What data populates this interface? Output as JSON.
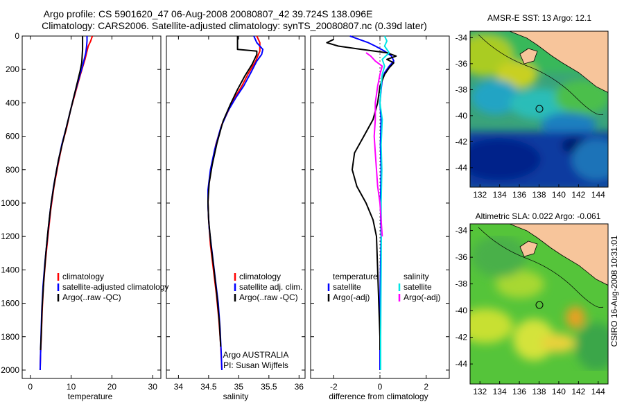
{
  "header": {
    "title_line1": "Argo profile: CS 5901620_47 06-Aug-2008 20080807_42 39.724S 138.096E",
    "title_line2": "Climatology: CARS2006. Satellite-adjusted climatology: synTS_20080807.nc (0.39d later)"
  },
  "side_label": "CSIRO 16-Aug-2008 10:31:01",
  "colors": {
    "climatology": "#ff0000",
    "satellite": "#0000ff",
    "argo": "#000000",
    "salinity_satellite": "#00e5e5",
    "salinity_argo": "#ff00ff",
    "land": "#f7c59b"
  },
  "chart_data": [
    {
      "type": "line",
      "xlabel": "temperature",
      "xticks": [
        "0",
        "10",
        "20",
        "30"
      ],
      "xlim": [
        -2,
        32
      ],
      "ylim": [
        2050,
        0
      ],
      "yticks": [
        "0",
        "200",
        "400",
        "600",
        "800",
        "1000",
        "1200",
        "1400",
        "1600",
        "1800",
        "2000"
      ],
      "legend": {
        "position": "lower-right",
        "entries": [
          "climatology",
          "satellite-adjusted climatology",
          "Argo(..raw -QC)"
        ]
      },
      "series": [
        {
          "name": "climatology",
          "color_key": "climatology",
          "points": [
            [
              15.2,
              0
            ],
            [
              14.8,
              30
            ],
            [
              14.2,
              60
            ],
            [
              13.8,
              100
            ],
            [
              13.4,
              140
            ],
            [
              12.9,
              180
            ],
            [
              12.3,
              230
            ],
            [
              11.6,
              290
            ],
            [
              10.8,
              360
            ],
            [
              9.8,
              450
            ],
            [
              8.9,
              550
            ],
            [
              7.8,
              650
            ],
            [
              6.7,
              780
            ],
            [
              5.8,
              900
            ],
            [
              5.0,
              1040
            ],
            [
              4.3,
              1200
            ],
            [
              3.7,
              1350
            ],
            [
              3.2,
              1500
            ],
            [
              2.9,
              1650
            ],
            [
              2.7,
              1800
            ],
            [
              2.5,
              1900
            ],
            [
              2.4,
              2000
            ]
          ]
        },
        {
          "name": "satellite-adjusted climatology",
          "color_key": "satellite",
          "points": [
            [
              13.9,
              0
            ],
            [
              13.9,
              30
            ],
            [
              13.8,
              60
            ],
            [
              13.6,
              100
            ],
            [
              13.2,
              140
            ],
            [
              12.8,
              180
            ],
            [
              12.2,
              230
            ],
            [
              11.5,
              290
            ],
            [
              10.7,
              360
            ],
            [
              9.8,
              450
            ],
            [
              8.8,
              550
            ],
            [
              7.7,
              650
            ],
            [
              6.6,
              780
            ],
            [
              5.7,
              900
            ],
            [
              4.9,
              1040
            ],
            [
              4.2,
              1200
            ],
            [
              3.6,
              1350
            ],
            [
              3.1,
              1500
            ],
            [
              2.8,
              1650
            ],
            [
              2.6,
              1800
            ],
            [
              2.5,
              1900
            ],
            [
              2.4,
              2000
            ]
          ]
        },
        {
          "name": "Argo(..raw -QC)",
          "color_key": "argo",
          "points": [
            [
              12.8,
              0
            ],
            [
              12.8,
              40
            ],
            [
              12.8,
              80
            ],
            [
              12.7,
              120
            ],
            [
              12.6,
              160
            ],
            [
              12.2,
              210
            ],
            [
              11.6,
              270
            ],
            [
              10.9,
              340
            ],
            [
              10.0,
              430
            ],
            [
              9.0,
              530
            ],
            [
              8.0,
              630
            ],
            [
              6.9,
              740
            ],
            [
              6.0,
              860
            ],
            [
              5.1,
              1000
            ],
            [
              4.4,
              1150
            ],
            [
              3.8,
              1300
            ],
            [
              3.3,
              1460
            ],
            [
              2.9,
              1620
            ],
            [
              2.7,
              1780
            ],
            [
              2.5,
              1880
            ]
          ]
        }
      ]
    },
    {
      "type": "line",
      "xlabel": "salinity",
      "xticks": [
        "34",
        "34.5",
        "35",
        "35.5",
        "36"
      ],
      "xlim": [
        33.8,
        36.1
      ],
      "ylim": [
        2050,
        0
      ],
      "legend": {
        "position": "lower-right",
        "entries": [
          "climatology",
          "satellite adj. clim.",
          "Argo(..raw -QC)"
        ]
      },
      "annotation": [
        "Argo AUSTRALIA",
        "PI: Susan Wijffels"
      ],
      "series": [
        {
          "name": "climatology",
          "color_key": "climatology",
          "points": [
            [
              35.3,
              0
            ],
            [
              35.35,
              40
            ],
            [
              35.35,
              90
            ],
            [
              35.28,
              150
            ],
            [
              35.15,
              230
            ],
            [
              35.05,
              300
            ],
            [
              34.95,
              360
            ],
            [
              34.85,
              430
            ],
            [
              34.72,
              530
            ],
            [
              34.62,
              650
            ],
            [
              34.55,
              780
            ],
            [
              34.5,
              900
            ],
            [
              34.49,
              1000
            ],
            [
              34.5,
              1100
            ],
            [
              34.53,
              1250
            ],
            [
              34.58,
              1400
            ],
            [
              34.63,
              1550
            ],
            [
              34.67,
              1700
            ],
            [
              34.7,
              1850
            ],
            [
              34.72,
              2000
            ]
          ]
        },
        {
          "name": "satellite adj. clim.",
          "color_key": "satellite",
          "points": [
            [
              35.25,
              0
            ],
            [
              35.3,
              40
            ],
            [
              35.4,
              80
            ],
            [
              35.38,
              110
            ],
            [
              35.3,
              150
            ],
            [
              35.2,
              220
            ],
            [
              35.08,
              300
            ],
            [
              34.95,
              370
            ],
            [
              34.82,
              450
            ],
            [
              34.7,
              550
            ],
            [
              34.6,
              680
            ],
            [
              34.53,
              800
            ],
            [
              34.49,
              920
            ],
            [
              34.49,
              1020
            ],
            [
              34.51,
              1150
            ],
            [
              34.56,
              1300
            ],
            [
              34.61,
              1450
            ],
            [
              34.66,
              1600
            ],
            [
              34.69,
              1750
            ],
            [
              34.71,
              1900
            ],
            [
              34.72,
              2000
            ]
          ]
        },
        {
          "name": "Argo(..raw -QC)",
          "color_key": "argo",
          "points": [
            [
              34.98,
              0
            ],
            [
              34.98,
              40
            ],
            [
              34.98,
              80
            ],
            [
              35.3,
              90
            ],
            [
              35.3,
              110
            ],
            [
              35.22,
              170
            ],
            [
              35.1,
              240
            ],
            [
              34.98,
              320
            ],
            [
              34.86,
              410
            ],
            [
              34.74,
              510
            ],
            [
              34.64,
              640
            ],
            [
              34.56,
              770
            ],
            [
              34.51,
              880
            ],
            [
              34.49,
              990
            ],
            [
              34.5,
              1100
            ],
            [
              34.54,
              1250
            ],
            [
              34.59,
              1400
            ],
            [
              34.64,
              1560
            ],
            [
              34.68,
              1720
            ],
            [
              34.7,
              1860
            ]
          ]
        }
      ]
    },
    {
      "type": "line",
      "xlabel": "difference from climatology",
      "xticks": [
        "-2",
        "0",
        "2"
      ],
      "xlim": [
        -3,
        3
      ],
      "ylim": [
        2050,
        0
      ],
      "legend": {
        "position": "lower-left",
        "entries": [
          "temperature",
          "satellite",
          "Argo(-adj)"
        ]
      },
      "legend2": {
        "position": "lower-right",
        "entries": [
          "salinity",
          "satellite",
          "Argo(-adj)"
        ]
      },
      "series": [
        {
          "name": "temperature satellite",
          "color_key": "satellite",
          "points": [
            [
              -1.3,
              0
            ],
            [
              -0.9,
              20
            ],
            [
              -0.5,
              40
            ],
            [
              -0.2,
              60
            ],
            [
              0.2,
              90
            ],
            [
              0.5,
              120
            ],
            [
              0.6,
              150
            ],
            [
              0.4,
              180
            ],
            [
              0.2,
              220
            ],
            [
              0.1,
              260
            ],
            [
              0.05,
              320
            ],
            [
              0.0,
              400
            ],
            [
              0.05,
              500
            ],
            [
              0.02,
              650
            ],
            [
              0.05,
              800
            ],
            [
              0.02,
              1000
            ],
            [
              0.05,
              1200
            ],
            [
              0.02,
              1400
            ],
            [
              0.0,
              1600
            ],
            [
              0.0,
              1800
            ],
            [
              0.0,
              2000
            ]
          ]
        },
        {
          "name": "temperature Argo(-adj)",
          "color_key": "argo",
          "points": [
            [
              -2.0,
              20
            ],
            [
              -2.3,
              40
            ],
            [
              -1.8,
              60
            ],
            [
              -0.8,
              80
            ],
            [
              0.3,
              100
            ],
            [
              0.7,
              120
            ],
            [
              0.3,
              140
            ],
            [
              0.6,
              160
            ],
            [
              0.4,
              190
            ],
            [
              0.2,
              230
            ],
            [
              0.0,
              300
            ],
            [
              -0.1,
              400
            ],
            [
              -0.3,
              500
            ],
            [
              -0.7,
              600
            ],
            [
              -1.1,
              700
            ],
            [
              -1.2,
              800
            ],
            [
              -1.0,
              900
            ],
            [
              -0.6,
              1000
            ],
            [
              -0.3,
              1100
            ],
            [
              -0.15,
              1200
            ],
            [
              -0.1,
              1400
            ],
            [
              -0.05,
              1600
            ],
            [
              0.0,
              1800
            ],
            [
              0.0,
              1880
            ]
          ]
        },
        {
          "name": "salinity satellite",
          "color_key": "salinity_satellite",
          "points": [
            [
              0.2,
              0
            ],
            [
              0.3,
              30
            ],
            [
              0.2,
              60
            ],
            [
              0.4,
              100
            ],
            [
              0.1,
              140
            ],
            [
              0.2,
              180
            ],
            [
              0.1,
              230
            ],
            [
              0.05,
              300
            ],
            [
              0.0,
              400
            ],
            [
              0.1,
              500
            ],
            [
              0.05,
              650
            ],
            [
              0.08,
              800
            ],
            [
              0.05,
              1000
            ],
            [
              0.06,
              1200
            ],
            [
              0.05,
              1400
            ],
            [
              0.04,
              1600
            ],
            [
              0.03,
              1800
            ],
            [
              0.03,
              2000
            ]
          ]
        },
        {
          "name": "salinity Argo(-adj)",
          "color_key": "salinity_argo",
          "points": [
            [
              -0.6,
              100
            ],
            [
              -0.4,
              120
            ],
            [
              -0.2,
              150
            ],
            [
              0.1,
              180
            ],
            [
              0.0,
              230
            ],
            [
              -0.1,
              300
            ],
            [
              -0.2,
              400
            ],
            [
              -0.2,
              500
            ],
            [
              -0.25,
              600
            ],
            [
              -0.2,
              700
            ],
            [
              -0.15,
              800
            ],
            [
              -0.1,
              900
            ],
            [
              0.0,
              1000
            ],
            [
              0.05,
              1100
            ],
            [
              0.1,
              1200
            ]
          ]
        }
      ]
    }
  ],
  "maps": [
    {
      "title": "AMSR-E SST: 13 Argo: 12.1",
      "xticks": [
        "132",
        "134",
        "136",
        "138",
        "140",
        "142",
        "144"
      ],
      "yticks": [
        "-34",
        "-36",
        "-38",
        "-40",
        "-42",
        "-44"
      ],
      "xlim": [
        131,
        145
      ],
      "ylim": [
        -45.5,
        -33.5
      ],
      "profile_location": [
        138.1,
        -39.72
      ]
    },
    {
      "title": "Altimetric SLA: 0.022 Argo: -0.061",
      "xticks": [
        "132",
        "134",
        "136",
        "138",
        "140",
        "142",
        "144"
      ],
      "yticks": [
        "-34",
        "-36",
        "-38",
        "-40",
        "-42",
        "-44"
      ],
      "xlim": [
        131,
        145
      ],
      "ylim": [
        -45.5,
        -33.5
      ],
      "profile_location": [
        138.1,
        -39.72
      ]
    }
  ]
}
